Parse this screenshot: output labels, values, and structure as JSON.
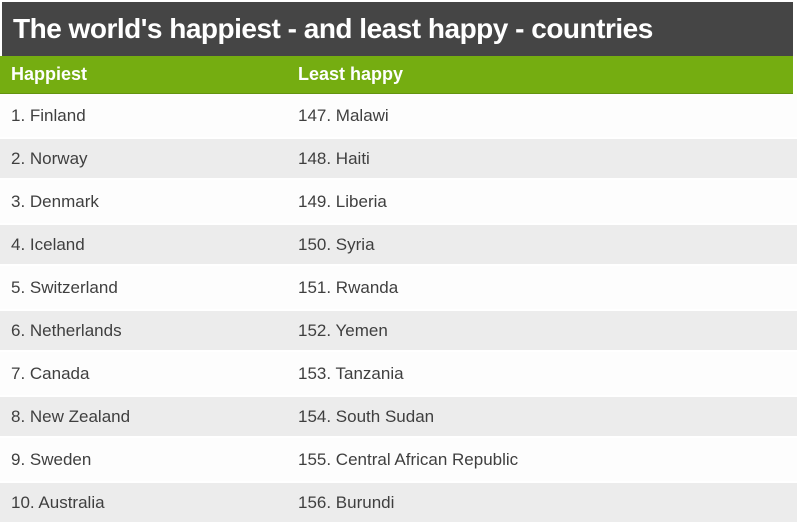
{
  "title": "The world's happiest - and least happy - countries",
  "colors": {
    "title_bar_bg": "#454545",
    "title_text": "#ffffff",
    "column_header_bg": "#75ad11",
    "column_header_text": "#ffffff",
    "row_bg": "#fdfdfd",
    "row_alt_bg": "#ececec",
    "row_text": "#3f3f3f"
  },
  "chart_data": {
    "type": "table",
    "title": "The world's happiest - and least happy - countries",
    "columns": [
      "Happiest",
      "Least happy"
    ],
    "rows": [
      [
        "1. Finland",
        "147. Malawi"
      ],
      [
        "2. Norway",
        "148. Haiti"
      ],
      [
        "3. Denmark",
        "149. Liberia"
      ],
      [
        "4. Iceland",
        "150. Syria"
      ],
      [
        "5. Switzerland",
        "151. Rwanda"
      ],
      [
        "6. Netherlands",
        "152. Yemen"
      ],
      [
        "7. Canada",
        "153. Tanzania"
      ],
      [
        "8. New Zealand",
        "154. South Sudan"
      ],
      [
        "9. Sweden",
        "155. Central African Republic"
      ],
      [
        "10. Australia",
        "156. Burundi"
      ]
    ],
    "series": [
      {
        "name": "Happiest",
        "entries": [
          {
            "rank": 1,
            "country": "Finland"
          },
          {
            "rank": 2,
            "country": "Norway"
          },
          {
            "rank": 3,
            "country": "Denmark"
          },
          {
            "rank": 4,
            "country": "Iceland"
          },
          {
            "rank": 5,
            "country": "Switzerland"
          },
          {
            "rank": 6,
            "country": "Netherlands"
          },
          {
            "rank": 7,
            "country": "Canada"
          },
          {
            "rank": 8,
            "country": "New Zealand"
          },
          {
            "rank": 9,
            "country": "Sweden"
          },
          {
            "rank": 10,
            "country": "Australia"
          }
        ]
      },
      {
        "name": "Least happy",
        "entries": [
          {
            "rank": 147,
            "country": "Malawi"
          },
          {
            "rank": 148,
            "country": "Haiti"
          },
          {
            "rank": 149,
            "country": "Liberia"
          },
          {
            "rank": 150,
            "country": "Syria"
          },
          {
            "rank": 151,
            "country": "Rwanda"
          },
          {
            "rank": 152,
            "country": "Yemen"
          },
          {
            "rank": 153,
            "country": "Tanzania"
          },
          {
            "rank": 154,
            "country": "South Sudan"
          },
          {
            "rank": 155,
            "country": "Central African Republic"
          },
          {
            "rank": 156,
            "country": "Burundi"
          }
        ]
      }
    ]
  }
}
